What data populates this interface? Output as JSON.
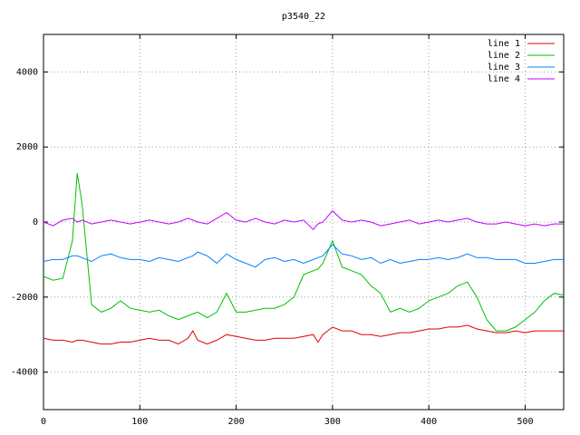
{
  "chart_data": {
    "type": "line",
    "title": "p3540_22",
    "x": [
      0,
      10,
      20,
      30,
      35,
      40,
      50,
      60,
      70,
      80,
      90,
      100,
      110,
      120,
      130,
      140,
      150,
      155,
      160,
      170,
      180,
      190,
      200,
      210,
      220,
      230,
      240,
      250,
      260,
      270,
      280,
      285,
      290,
      300,
      310,
      320,
      330,
      340,
      350,
      360,
      370,
      380,
      390,
      400,
      410,
      420,
      430,
      440,
      450,
      460,
      470,
      480,
      490,
      500,
      510,
      520,
      530,
      540
    ],
    "series": [
      {
        "name": "line 1",
        "color": "#e00000",
        "values": [
          -3100,
          -3150,
          -3150,
          -3200,
          -3150,
          -3150,
          -3200,
          -3250,
          -3250,
          -3200,
          -3200,
          -3150,
          -3100,
          -3150,
          -3150,
          -3250,
          -3100,
          -2900,
          -3150,
          -3250,
          -3150,
          -3000,
          -3050,
          -3100,
          -3150,
          -3150,
          -3100,
          -3100,
          -3100,
          -3050,
          -3000,
          -3200,
          -3000,
          -2800,
          -2900,
          -2900,
          -3000,
          -3000,
          -3050,
          -3000,
          -2950,
          -2950,
          -2900,
          -2850,
          -2850,
          -2800,
          -2800,
          -2750,
          -2850,
          -2900,
          -2950,
          -2950,
          -2900,
          -2950,
          -2900,
          -2900,
          -2900,
          -2900
        ]
      },
      {
        "name": "line 2",
        "color": "#00c000",
        "values": [
          -1450,
          -1550,
          -1500,
          -500,
          1300,
          500,
          -2200,
          -2400,
          -2300,
          -2100,
          -2300,
          -2350,
          -2400,
          -2350,
          -2500,
          -2600,
          -2500,
          -2450,
          -2400,
          -2550,
          -2400,
          -1900,
          -2400,
          -2400,
          -2350,
          -2300,
          -2300,
          -2200,
          -2000,
          -1400,
          -1300,
          -1250,
          -1100,
          -500,
          -1200,
          -1300,
          -1400,
          -1700,
          -1900,
          -2400,
          -2300,
          -2400,
          -2300,
          -2100,
          -2000,
          -1900,
          -1700,
          -1600,
          -2000,
          -2600,
          -2900,
          -2900,
          -2800,
          -2600,
          -2400,
          -2100,
          -1900,
          -1950
        ]
      },
      {
        "name": "line 3",
        "color": "#0080ff",
        "values": [
          -1050,
          -1000,
          -1000,
          -900,
          -900,
          -950,
          -1050,
          -900,
          -850,
          -950,
          -1000,
          -1000,
          -1050,
          -950,
          -1000,
          -1050,
          -950,
          -900,
          -800,
          -900,
          -1100,
          -850,
          -1000,
          -1100,
          -1200,
          -1000,
          -950,
          -1050,
          -1000,
          -1100,
          -1000,
          -950,
          -900,
          -600,
          -850,
          -900,
          -1000,
          -950,
          -1100,
          -1000,
          -1100,
          -1050,
          -1000,
          -1000,
          -950,
          -1000,
          -950,
          -850,
          -950,
          -950,
          -1000,
          -1000,
          -1000,
          -1100,
          -1100,
          -1050,
          -1000,
          -1000
        ]
      },
      {
        "name": "line 4",
        "color": "#c000ff",
        "values": [
          0,
          -100,
          50,
          100,
          0,
          50,
          -50,
          0,
          50,
          0,
          -50,
          0,
          50,
          0,
          -50,
          0,
          100,
          50,
          0,
          -50,
          100,
          250,
          50,
          0,
          100,
          0,
          -50,
          50,
          0,
          50,
          -200,
          -50,
          0,
          300,
          50,
          0,
          50,
          0,
          -100,
          -50,
          0,
          50,
          -50,
          0,
          50,
          0,
          50,
          100,
          0,
          -50,
          -50,
          0,
          -50,
          -100,
          -50,
          -100,
          -50,
          -50
        ]
      }
    ],
    "xlim": [
      0,
      540
    ],
    "ylim": [
      -5000,
      5000
    ],
    "xticks": [
      0,
      100,
      200,
      300,
      400,
      500
    ],
    "yticks": [
      -4000,
      -2000,
      0,
      2000,
      4000
    ],
    "grid": true,
    "legend": "top-right"
  }
}
